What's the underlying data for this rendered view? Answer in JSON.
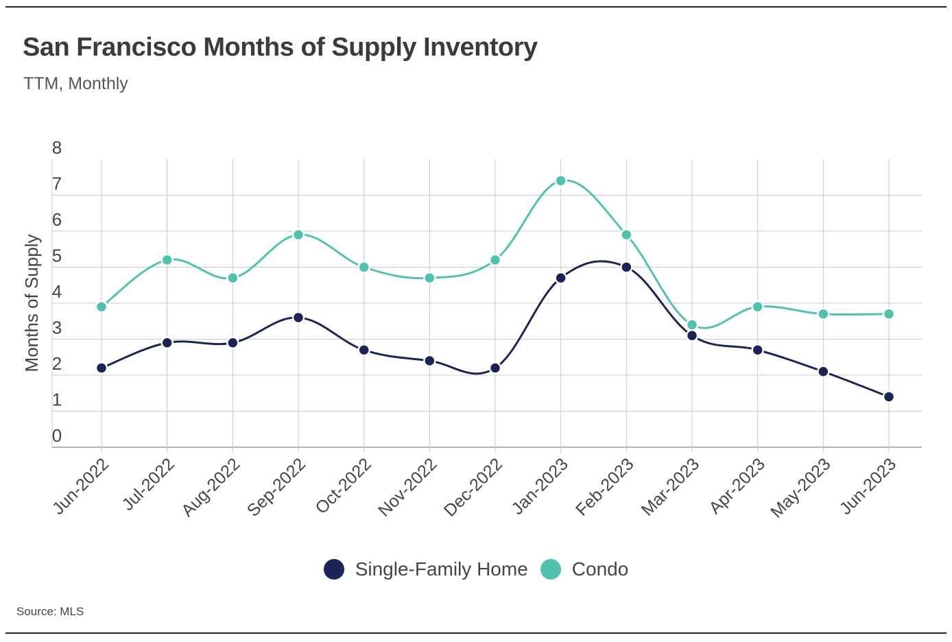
{
  "header": {
    "title": "San Francisco Months of Supply Inventory",
    "subtitle": "TTM, Monthly"
  },
  "footer": {
    "source": "Source: MLS"
  },
  "colors": {
    "sfh": "#1b2456",
    "condo": "#4fc2ad",
    "grid": "#c8c8c8",
    "axis_text": "#444444"
  },
  "chart_data": {
    "type": "line",
    "title": "San Francisco Months of Supply Inventory",
    "subtitle": "TTM, Monthly",
    "xlabel": "",
    "ylabel": "Months of Supply",
    "ylim": [
      0,
      8
    ],
    "yticks": [
      0,
      1,
      2,
      3,
      4,
      5,
      6,
      7,
      8
    ],
    "grid": true,
    "legend_position": "bottom-center",
    "categories": [
      "Jun-2022",
      "Jul-2022",
      "Aug-2022",
      "Sep-2022",
      "Oct-2022",
      "Nov-2022",
      "Dec-2022",
      "Jan-2023",
      "Feb-2023",
      "Mar-2023",
      "Apr-2023",
      "May-2023",
      "Jun-2023"
    ],
    "series": [
      {
        "name": "Single-Family Home",
        "color": "#1b2456",
        "values": [
          2.2,
          2.9,
          2.9,
          3.6,
          2.7,
          2.4,
          2.2,
          4.7,
          5.0,
          3.1,
          2.7,
          2.1,
          1.4
        ]
      },
      {
        "name": "Condo",
        "color": "#4fc2ad",
        "values": [
          3.9,
          5.2,
          4.7,
          5.9,
          5.0,
          4.7,
          5.2,
          7.4,
          5.9,
          3.4,
          3.9,
          3.7,
          3.7
        ]
      }
    ]
  }
}
